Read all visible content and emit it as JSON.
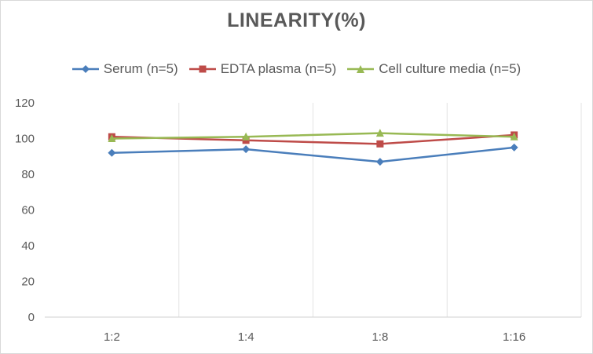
{
  "chart_data": {
    "type": "line",
    "title": "LINEARITY(%)",
    "xlabel": "",
    "ylabel": "",
    "categories": [
      "1:2",
      "1:4",
      "1:8",
      "1:16"
    ],
    "ylim": [
      0,
      120
    ],
    "yticks": [
      0,
      20,
      40,
      60,
      80,
      100,
      120
    ],
    "grid": "vertical",
    "legend": "top",
    "series": [
      {
        "name": "Serum (n=5)",
        "values": [
          92,
          94,
          87,
          95
        ],
        "color": "#4a7ebb",
        "marker": "diamond"
      },
      {
        "name": "EDTA plasma (n=5)",
        "values": [
          101,
          99,
          97,
          102
        ],
        "color": "#be4b48",
        "marker": "square"
      },
      {
        "name": "Cell culture media (n=5)",
        "values": [
          100,
          101,
          103,
          101
        ],
        "color": "#98b954",
        "marker": "triangle"
      }
    ]
  }
}
